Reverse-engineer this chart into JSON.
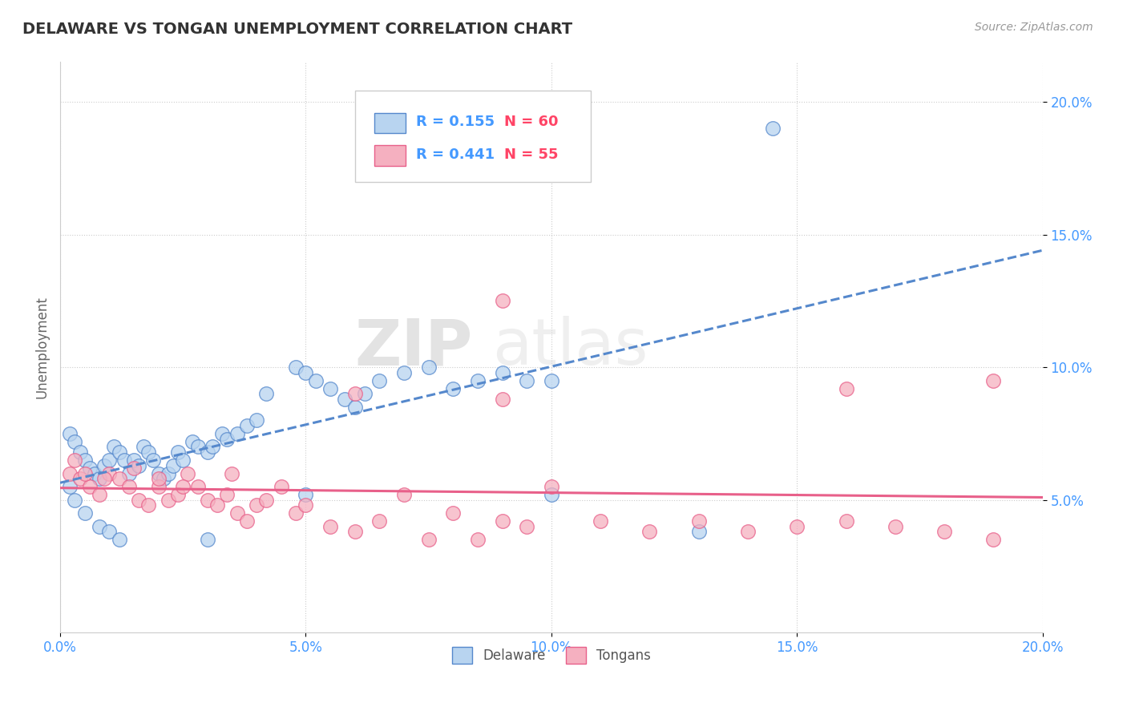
{
  "title": "DELAWARE VS TONGAN UNEMPLOYMENT CORRELATION CHART",
  "source": "Source: ZipAtlas.com",
  "ylabel": "Unemployment",
  "xlim": [
    0.0,
    0.2
  ],
  "ylim": [
    0.0,
    0.215
  ],
  "ytick_labels": [
    "5.0%",
    "10.0%",
    "15.0%",
    "20.0%"
  ],
  "ytick_values": [
    0.05,
    0.1,
    0.15,
    0.2
  ],
  "xtick_labels": [
    "0.0%",
    "5.0%",
    "10.0%",
    "15.0%",
    "20.0%"
  ],
  "xtick_values": [
    0.0,
    0.05,
    0.1,
    0.15,
    0.2
  ],
  "delaware_color": "#b8d4f0",
  "tongan_color": "#f5b0c0",
  "delaware_R": 0.155,
  "delaware_N": 60,
  "tongan_R": 0.441,
  "tongan_N": 55,
  "delaware_line_color": "#5588cc",
  "tongan_line_color": "#e8608a",
  "watermark_zip": "ZIP",
  "watermark_atlas": "atlas",
  "legend_R_color": "#4499ff",
  "legend_N_color": "#ff4466",
  "delaware_x": [
    0.002,
    0.003,
    0.004,
    0.005,
    0.006,
    0.007,
    0.008,
    0.009,
    0.01,
    0.011,
    0.012,
    0.013,
    0.014,
    0.015,
    0.016,
    0.017,
    0.018,
    0.019,
    0.02,
    0.021,
    0.022,
    0.023,
    0.024,
    0.025,
    0.027,
    0.028,
    0.03,
    0.031,
    0.033,
    0.034,
    0.036,
    0.038,
    0.04,
    0.042,
    0.048,
    0.05,
    0.052,
    0.055,
    0.058,
    0.06,
    0.062,
    0.065,
    0.07,
    0.075,
    0.08,
    0.085,
    0.09,
    0.095,
    0.1,
    0.002,
    0.003,
    0.005,
    0.008,
    0.01,
    0.012,
    0.03,
    0.05,
    0.1,
    0.13,
    0.145
  ],
  "delaware_y": [
    0.075,
    0.072,
    0.068,
    0.065,
    0.062,
    0.06,
    0.058,
    0.063,
    0.065,
    0.07,
    0.068,
    0.065,
    0.06,
    0.065,
    0.063,
    0.07,
    0.068,
    0.065,
    0.06,
    0.058,
    0.06,
    0.063,
    0.068,
    0.065,
    0.072,
    0.07,
    0.068,
    0.07,
    0.075,
    0.073,
    0.075,
    0.078,
    0.08,
    0.09,
    0.1,
    0.098,
    0.095,
    0.092,
    0.088,
    0.085,
    0.09,
    0.095,
    0.098,
    0.1,
    0.092,
    0.095,
    0.098,
    0.095,
    0.095,
    0.055,
    0.05,
    0.045,
    0.04,
    0.038,
    0.035,
    0.035,
    0.052,
    0.052,
    0.038,
    0.19
  ],
  "tongan_x": [
    0.002,
    0.004,
    0.006,
    0.008,
    0.01,
    0.012,
    0.014,
    0.016,
    0.018,
    0.02,
    0.022,
    0.024,
    0.026,
    0.028,
    0.03,
    0.032,
    0.034,
    0.036,
    0.038,
    0.04,
    0.042,
    0.045,
    0.048,
    0.05,
    0.055,
    0.06,
    0.065,
    0.07,
    0.075,
    0.08,
    0.085,
    0.09,
    0.095,
    0.1,
    0.11,
    0.12,
    0.13,
    0.14,
    0.15,
    0.16,
    0.17,
    0.18,
    0.19,
    0.003,
    0.005,
    0.009,
    0.015,
    0.02,
    0.025,
    0.035,
    0.06,
    0.09,
    0.16,
    0.19,
    0.09
  ],
  "tongan_y": [
    0.06,
    0.058,
    0.055,
    0.052,
    0.06,
    0.058,
    0.055,
    0.05,
    0.048,
    0.055,
    0.05,
    0.052,
    0.06,
    0.055,
    0.05,
    0.048,
    0.052,
    0.045,
    0.042,
    0.048,
    0.05,
    0.055,
    0.045,
    0.048,
    0.04,
    0.038,
    0.042,
    0.052,
    0.035,
    0.045,
    0.035,
    0.042,
    0.04,
    0.055,
    0.042,
    0.038,
    0.042,
    0.038,
    0.04,
    0.042,
    0.04,
    0.038,
    0.035,
    0.065,
    0.06,
    0.058,
    0.062,
    0.058,
    0.055,
    0.06,
    0.09,
    0.088,
    0.092,
    0.095,
    0.125
  ]
}
